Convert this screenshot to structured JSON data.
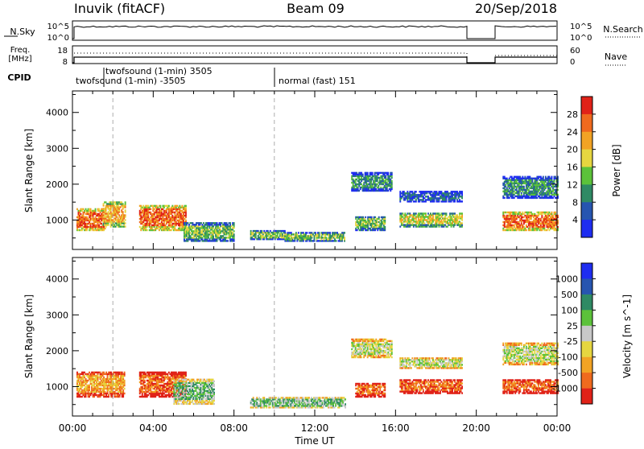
{
  "header": {
    "station": "Inuvik (fitACF)",
    "beam": "Beam 09",
    "date": "20/Sep/2018"
  },
  "top_panel": {
    "left_label": "N.Sky",
    "left_ticks": [
      "10^5",
      "10^0"
    ],
    "right_ticks": [
      "10^5",
      "10^0"
    ],
    "right_label": "N.Search"
  },
  "freq_panel": {
    "left_label_line1": "Freq.",
    "left_label_line2": "[MHz]",
    "left_ticks": [
      "18",
      "8"
    ],
    "right_ticks": [
      "60",
      "0"
    ],
    "right_label": "Nave"
  },
  "cpid": {
    "label": "CPID",
    "segments": [
      {
        "text": "twofsound (1-min) -3505",
        "start_hour": 0
      },
      {
        "text": "twofsound (1-min) 3505",
        "start_hour": 2
      },
      {
        "text": "normal (fast) 151",
        "start_hour": 10
      }
    ]
  },
  "chart_data": [
    {
      "type": "heatmap",
      "name": "power",
      "xlabel": "",
      "ylabel": "Slant Range [km]",
      "xlim": [
        0,
        24
      ],
      "ylim": [
        180,
        4600
      ],
      "yticks": [
        1000,
        2000,
        3000,
        4000
      ],
      "dashed_lines_hours": [
        2,
        10
      ],
      "colorbar": {
        "label": "Power [dB]",
        "ticks": [
          "4",
          "8",
          "12",
          "16",
          "20",
          "24",
          "28"
        ],
        "colors": [
          "#1e2df0",
          "#2755b0",
          "#2f8a64",
          "#5cc23a",
          "#e6d640",
          "#f2a324",
          "#ef6a1e",
          "#e02218"
        ]
      },
      "echo_regions": [
        {
          "t0": 0.2,
          "t1": 1.6,
          "r0": 700,
          "r1": 1300,
          "level": 6
        },
        {
          "t0": 1.5,
          "t1": 2.6,
          "r0": 800,
          "r1": 1500,
          "level": 5
        },
        {
          "t0": 3.3,
          "t1": 5.6,
          "r0": 700,
          "r1": 1400,
          "level": 6
        },
        {
          "t0": 5.5,
          "t1": 8.0,
          "r0": 400,
          "r1": 900,
          "level": 3
        },
        {
          "t0": 8.8,
          "t1": 10.5,
          "r0": 450,
          "r1": 700,
          "level": 3
        },
        {
          "t0": 10.5,
          "t1": 13.5,
          "r0": 400,
          "r1": 650,
          "level": 3
        },
        {
          "t0": 13.8,
          "t1": 15.8,
          "r0": 1800,
          "r1": 2300,
          "level": 2
        },
        {
          "t0": 14.0,
          "t1": 15.5,
          "r0": 700,
          "r1": 1100,
          "level": 3
        },
        {
          "t0": 16.2,
          "t1": 19.3,
          "r0": 1500,
          "r1": 1800,
          "level": 1
        },
        {
          "t0": 16.2,
          "t1": 19.3,
          "r0": 800,
          "r1": 1200,
          "level": 4
        },
        {
          "t0": 21.3,
          "t1": 24.0,
          "r0": 1600,
          "r1": 2200,
          "level": 2
        },
        {
          "t0": 21.3,
          "t1": 24.0,
          "r0": 700,
          "r1": 1200,
          "level": 6
        }
      ]
    },
    {
      "type": "heatmap",
      "name": "velocity",
      "xlabel": "Time UT",
      "ylabel": "Slant Range [km]",
      "xlim": [
        0,
        24
      ],
      "ylim": [
        180,
        4600
      ],
      "yticks": [
        1000,
        2000,
        3000,
        4000
      ],
      "xticks": [
        "00:00",
        "04:00",
        "08:00",
        "12:00",
        "16:00",
        "20:00",
        "00:00"
      ],
      "dashed_lines_hours": [
        2,
        10
      ],
      "colorbar": {
        "label": "Velocity [m s^-1]",
        "ticks": [
          "-1000",
          "-500",
          "-100",
          "-25",
          "25",
          "100",
          "500",
          "1000"
        ],
        "colors": [
          "#e02218",
          "#ef6a1e",
          "#f2a324",
          "#e6d640",
          "#c8c8c8",
          "#5cc23a",
          "#2f8a64",
          "#2755b0",
          "#1e2df0"
        ]
      },
      "echo_regions": [
        {
          "t0": 0.2,
          "t1": 2.6,
          "r0": 700,
          "r1": 1400,
          "level": 2
        },
        {
          "t0": 3.3,
          "t1": 5.6,
          "r0": 700,
          "r1": 1400,
          "level": 1
        },
        {
          "t0": 5.0,
          "t1": 7.0,
          "r0": 500,
          "r1": 1200,
          "level": 5
        },
        {
          "t0": 8.8,
          "t1": 13.5,
          "r0": 400,
          "r1": 700,
          "level": 5
        },
        {
          "t0": 13.8,
          "t1": 15.8,
          "r0": 1800,
          "r1": 2300,
          "level": 4
        },
        {
          "t0": 14.0,
          "t1": 15.5,
          "r0": 700,
          "r1": 1100,
          "level": 1
        },
        {
          "t0": 16.2,
          "t1": 19.3,
          "r0": 1500,
          "r1": 1800,
          "level": 4
        },
        {
          "t0": 16.2,
          "t1": 19.3,
          "r0": 800,
          "r1": 1200,
          "level": 1
        },
        {
          "t0": 21.3,
          "t1": 24.0,
          "r0": 1600,
          "r1": 2200,
          "level": 4
        },
        {
          "t0": 21.3,
          "t1": 24.0,
          "r0": 800,
          "r1": 1200,
          "level": 1
        }
      ]
    }
  ]
}
